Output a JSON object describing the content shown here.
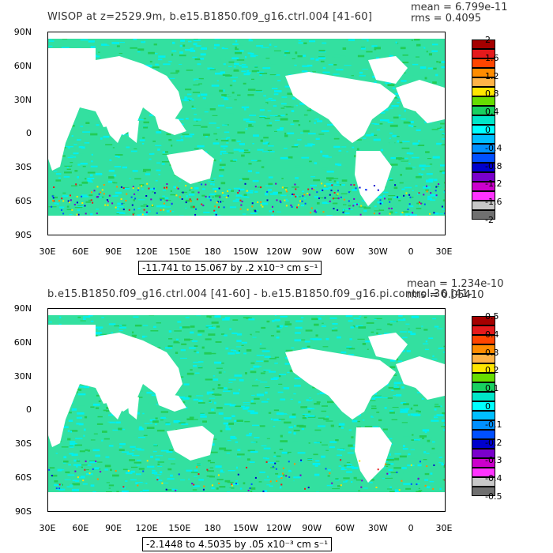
{
  "panels": [
    {
      "title": "WISOP at z=2529.9m, b.e15.B1850.f09_g16.ctrl.004 [41-60]",
      "mean_text": "mean = 6.799e-11",
      "rms_text": "rms = 0.4095",
      "range_text": "-11.741 to 15.067 by .2 x10⁻³ cm s⁻¹",
      "colorbar_labels": [
        "2",
        "1.6",
        "1.2",
        "0.8",
        "0.4",
        "0",
        "-0.4",
        "-0.8",
        "-1.2",
        "-1.6",
        "-2"
      ]
    },
    {
      "title": "b.e15.B1850.f09_g16.ctrl.004 [41-60] - b.e15.B1850.f09_g16.pi.control.36 [41-",
      "mean_text": "mean = 1.234e-10",
      "rms_text": "rms = 0.05410",
      "range_text": "-2.1448 to 4.5035 by .05 x10⁻³ cm s⁻¹",
      "colorbar_labels": [
        "0.5",
        "0.4",
        "0.3",
        "0.2",
        "0.1",
        "0",
        "-0.1",
        "-0.2",
        "-0.3",
        "-0.4",
        "-0.5"
      ]
    }
  ],
  "lat_labels": [
    "90N",
    "60N",
    "30N",
    "0",
    "30S",
    "60S",
    "90S"
  ],
  "lon_labels": [
    "30E",
    "60E",
    "90E",
    "120E",
    "150E",
    "180",
    "150W",
    "120W",
    "90W",
    "60W",
    "30W",
    "0",
    "30E"
  ],
  "colorbar_colors": [
    "#a50000",
    "#e41a1c",
    "#ff4500",
    "#ff8c00",
    "#ffb347",
    "#ffe600",
    "#66dd00",
    "#18d060",
    "#00e6c8",
    "#00ffff",
    "#00bfff",
    "#0090ff",
    "#0050ff",
    "#0000cc",
    "#7a00cc",
    "#cc00cc",
    "#ff33ff",
    "#c8c8c8",
    "#707070"
  ],
  "ocean_colors": {
    "land": "#ffffff",
    "ocean_primary": "#33e0a0",
    "ocean_secondary": "#00f0f0",
    "ocean_tertiary": "#22cc55"
  }
}
